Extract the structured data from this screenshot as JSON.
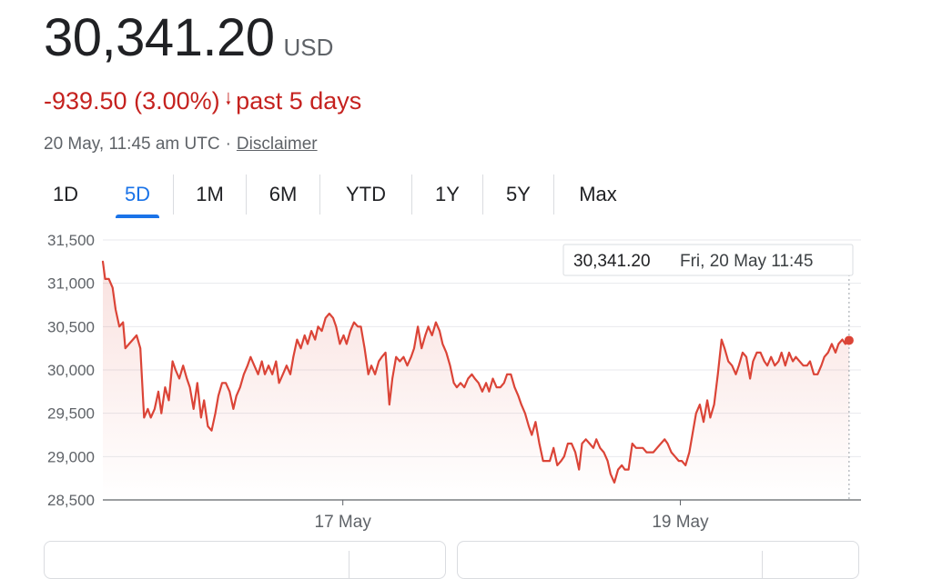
{
  "header": {
    "price": "30,341.20",
    "currency": "USD",
    "change": "-939.50 (3.00%)",
    "change_suffix": "past 5 days",
    "timestamp": "20 May, 11:45 am UTC",
    "separator": "·",
    "disclaimer": "Disclaimer"
  },
  "tabs": [
    {
      "label": "1D",
      "active": false
    },
    {
      "label": "5D",
      "active": true
    },
    {
      "label": "1M",
      "active": false
    },
    {
      "label": "6M",
      "active": false
    },
    {
      "label": "YTD",
      "active": false
    },
    {
      "label": "1Y",
      "active": false
    },
    {
      "label": "5Y",
      "active": false
    },
    {
      "label": "Max",
      "active": false
    }
  ],
  "tooltip": {
    "value": "30,341.20",
    "datetime": "Fri, 20 May 11:45"
  },
  "colors": {
    "line": "#db4437",
    "down": "#c5221f",
    "accent": "#1a73e8",
    "grid": "#e8eaed",
    "axis_text": "#5f6368"
  },
  "chart_data": {
    "type": "line",
    "title": "",
    "xlabel": "",
    "ylabel": "",
    "ylim": [
      28500,
      31500
    ],
    "yticks": [
      28500,
      29000,
      29500,
      30000,
      30500,
      31000,
      31500
    ],
    "ytick_labels": [
      "28,500",
      "29,000",
      "29,500",
      "30,000",
      "30,500",
      "31,000",
      "31,500"
    ],
    "xlim": [
      0,
      100
    ],
    "xticks": [
      {
        "x": 32,
        "label": "17 May"
      },
      {
        "x": 77,
        "label": "19 May"
      }
    ],
    "grid": true,
    "series": [
      {
        "values": [
          [
            0,
            31250
          ],
          [
            0.3,
            31050
          ],
          [
            0.8,
            31050
          ],
          [
            1.3,
            30950
          ],
          [
            1.7,
            30700
          ],
          [
            2.2,
            30500
          ],
          [
            2.7,
            30550
          ],
          [
            3,
            30250
          ],
          [
            3.5,
            30300
          ],
          [
            4,
            30350
          ],
          [
            4.5,
            30400
          ],
          [
            5,
            30250
          ],
          [
            5.5,
            29450
          ],
          [
            6,
            29550
          ],
          [
            6.4,
            29450
          ],
          [
            6.9,
            29550
          ],
          [
            7.4,
            29750
          ],
          [
            7.8,
            29500
          ],
          [
            8.3,
            29800
          ],
          [
            8.8,
            29650
          ],
          [
            9.3,
            30100
          ],
          [
            9.7,
            30000
          ],
          [
            10.2,
            29900
          ],
          [
            10.7,
            30050
          ],
          [
            11.2,
            29900
          ],
          [
            11.6,
            29800
          ],
          [
            12.1,
            29550
          ],
          [
            12.6,
            29850
          ],
          [
            13.1,
            29450
          ],
          [
            13.5,
            29650
          ],
          [
            14,
            29350
          ],
          [
            14.5,
            29300
          ],
          [
            15,
            29500
          ],
          [
            15.4,
            29700
          ],
          [
            15.9,
            29850
          ],
          [
            16.4,
            29850
          ],
          [
            16.9,
            29750
          ],
          [
            17.4,
            29550
          ],
          [
            17.8,
            29700
          ],
          [
            18.3,
            29800
          ],
          [
            18.8,
            29950
          ],
          [
            19.3,
            30050
          ],
          [
            19.7,
            30150
          ],
          [
            20.2,
            30050
          ],
          [
            20.7,
            29950
          ],
          [
            21.2,
            30100
          ],
          [
            21.6,
            29950
          ],
          [
            22.1,
            30050
          ],
          [
            22.6,
            29950
          ],
          [
            23.1,
            30100
          ],
          [
            23.5,
            29850
          ],
          [
            24,
            29950
          ],
          [
            24.5,
            30050
          ],
          [
            25,
            29950
          ],
          [
            25.4,
            30150
          ],
          [
            25.9,
            30350
          ],
          [
            26.4,
            30250
          ],
          [
            26.9,
            30400
          ],
          [
            27.3,
            30300
          ],
          [
            27.8,
            30450
          ],
          [
            28.3,
            30350
          ],
          [
            28.7,
            30500
          ],
          [
            29.2,
            30450
          ],
          [
            29.7,
            30600
          ],
          [
            30.2,
            30650
          ],
          [
            30.7,
            30600
          ],
          [
            31.1,
            30500
          ],
          [
            31.6,
            30300
          ],
          [
            32.1,
            30400
          ],
          [
            32.5,
            30300
          ],
          [
            33,
            30450
          ],
          [
            33.5,
            30550
          ],
          [
            34,
            30500
          ],
          [
            34.4,
            30500
          ],
          [
            34.9,
            30250
          ],
          [
            35.4,
            29950
          ],
          [
            35.8,
            30050
          ],
          [
            36.3,
            29950
          ],
          [
            36.8,
            30100
          ],
          [
            37.2,
            30150
          ],
          [
            37.7,
            30200
          ],
          [
            38.2,
            29600
          ],
          [
            38.6,
            29900
          ],
          [
            39.1,
            30150
          ],
          [
            39.6,
            30100
          ],
          [
            40.1,
            30150
          ],
          [
            40.6,
            30050
          ],
          [
            41.1,
            30150
          ],
          [
            41.5,
            30250
          ],
          [
            42,
            30500
          ],
          [
            42.5,
            30250
          ],
          [
            43,
            30400
          ],
          [
            43.4,
            30500
          ],
          [
            43.9,
            30400
          ],
          [
            44.4,
            30550
          ],
          [
            44.9,
            30450
          ],
          [
            45.3,
            30300
          ],
          [
            45.8,
            30200
          ],
          [
            46.3,
            30050
          ],
          [
            46.8,
            29850
          ],
          [
            47.2,
            29800
          ],
          [
            47.7,
            29850
          ],
          [
            48.2,
            29800
          ],
          [
            48.7,
            29900
          ],
          [
            49.2,
            29950
          ],
          [
            49.6,
            29900
          ],
          [
            50.1,
            29850
          ],
          [
            50.6,
            29750
          ],
          [
            51.1,
            29850
          ],
          [
            51.5,
            29750
          ],
          [
            52,
            29900
          ],
          [
            52.5,
            29800
          ],
          [
            53,
            29800
          ],
          [
            53.5,
            29850
          ],
          [
            53.9,
            29950
          ],
          [
            54.4,
            29950
          ],
          [
            54.9,
            29800
          ],
          [
            55.4,
            29700
          ],
          [
            55.8,
            29600
          ],
          [
            56.3,
            29500
          ],
          [
            56.8,
            29350
          ],
          [
            57.2,
            29250
          ],
          [
            57.7,
            29400
          ],
          [
            58.2,
            29150
          ],
          [
            58.7,
            28950
          ],
          [
            59.2,
            28950
          ],
          [
            59.6,
            28950
          ],
          [
            60.1,
            29100
          ],
          [
            60.6,
            28900
          ],
          [
            61.1,
            28950
          ],
          [
            61.5,
            29000
          ],
          [
            62,
            29150
          ],
          [
            62.5,
            29150
          ],
          [
            63,
            29050
          ],
          [
            63.5,
            28850
          ],
          [
            63.9,
            29150
          ],
          [
            64.4,
            29200
          ],
          [
            64.9,
            29150
          ],
          [
            65.4,
            29100
          ],
          [
            65.8,
            29200
          ],
          [
            66.3,
            29100
          ],
          [
            66.8,
            29050
          ],
          [
            67.3,
            28950
          ],
          [
            67.7,
            28800
          ],
          [
            68.2,
            28700
          ],
          [
            68.7,
            28850
          ],
          [
            69.2,
            28900
          ],
          [
            69.6,
            28850
          ],
          [
            70.1,
            28850
          ],
          [
            70.6,
            29150
          ],
          [
            71.1,
            29100
          ],
          [
            71.5,
            29100
          ],
          [
            72,
            29100
          ],
          [
            72.5,
            29050
          ],
          [
            73,
            29050
          ],
          [
            73.4,
            29050
          ],
          [
            73.9,
            29100
          ],
          [
            74.4,
            29150
          ],
          [
            74.9,
            29200
          ],
          [
            75.3,
            29150
          ],
          [
            75.8,
            29050
          ],
          [
            76.3,
            29000
          ],
          [
            76.8,
            28950
          ],
          [
            77.2,
            28950
          ],
          [
            77.7,
            28900
          ],
          [
            78.2,
            29050
          ],
          [
            78.7,
            29300
          ],
          [
            79.1,
            29500
          ],
          [
            79.6,
            29600
          ],
          [
            80.1,
            29400
          ],
          [
            80.6,
            29650
          ],
          [
            81,
            29450
          ],
          [
            81.5,
            29600
          ],
          [
            82,
            29950
          ],
          [
            82.5,
            30350
          ],
          [
            82.9,
            30250
          ],
          [
            83.4,
            30100
          ],
          [
            83.9,
            30050
          ],
          [
            84.4,
            29950
          ],
          [
            84.8,
            30050
          ],
          [
            85.3,
            30200
          ],
          [
            85.8,
            30150
          ],
          [
            86.3,
            29900
          ],
          [
            86.7,
            30100
          ],
          [
            87.2,
            30200
          ],
          [
            87.7,
            30200
          ],
          [
            88.2,
            30100
          ],
          [
            88.6,
            30050
          ],
          [
            89.1,
            30150
          ],
          [
            89.6,
            30050
          ],
          [
            90.1,
            30100
          ],
          [
            90.5,
            30200
          ],
          [
            91,
            30050
          ],
          [
            91.5,
            30200
          ],
          [
            92,
            30100
          ],
          [
            92.4,
            30150
          ],
          [
            92.9,
            30100
          ],
          [
            93.4,
            30050
          ],
          [
            93.9,
            30050
          ],
          [
            94.3,
            30100
          ],
          [
            94.8,
            29950
          ],
          [
            95.3,
            29950
          ],
          [
            95.8,
            30050
          ],
          [
            96.2,
            30150
          ],
          [
            96.7,
            30200
          ],
          [
            97.2,
            30300
          ],
          [
            97.7,
            30200
          ],
          [
            98.1,
            30300
          ],
          [
            98.6,
            30350
          ],
          [
            99,
            30300
          ],
          [
            99.5,
            30341.2
          ]
        ]
      }
    ]
  }
}
